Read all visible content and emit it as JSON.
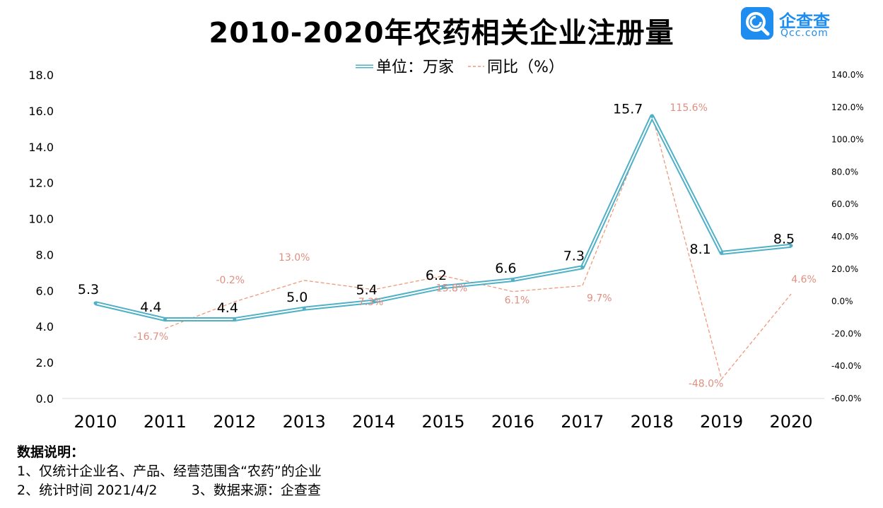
{
  "header": {
    "title": "2010-2020年农药相关企业注册量",
    "logo_name": "企查查",
    "logo_domain": "Qcc.com"
  },
  "colors": {
    "primary_line": "#4fb0c6",
    "secondary_line": "#f0997a",
    "secondary_label": "#e08f80",
    "brand": "#1f8df0"
  },
  "chart_data": {
    "type": "line",
    "title": "2010-2020年农药相关企业注册量",
    "categories": [
      "2010",
      "2011",
      "2012",
      "2013",
      "2014",
      "2015",
      "2016",
      "2017",
      "2018",
      "2019",
      "2020"
    ],
    "series": [
      {
        "name": "单位：万家",
        "axis": "left",
        "style": "double-line",
        "values": [
          5.3,
          4.4,
          4.4,
          5.0,
          5.4,
          6.2,
          6.6,
          7.3,
          15.7,
          8.1,
          8.5
        ],
        "labels": [
          "5.3",
          "4.4",
          "4.4",
          "5.0",
          "5.4",
          "6.2",
          "6.6",
          "7.3",
          "15.7",
          "8.1",
          "8.5"
        ]
      },
      {
        "name": "同比（%）",
        "axis": "right",
        "style": "dashed",
        "values": [
          null,
          -16.7,
          -0.2,
          13.0,
          7.3,
          15.8,
          6.1,
          9.7,
          115.6,
          -48.0,
          4.6
        ],
        "labels": [
          "",
          "-16.7%",
          "-0.2%",
          "13.0%",
          "7.3%",
          "15.8%",
          "6.1%",
          "9.7%",
          "115.6%",
          "-48.0%",
          "4.6%"
        ]
      }
    ],
    "y_left": {
      "min": 0,
      "max": 18,
      "ticks": [
        "0.0",
        "2.0",
        "4.0",
        "6.0",
        "8.0",
        "10.0",
        "12.0",
        "14.0",
        "16.0",
        "18.0"
      ]
    },
    "y_right": {
      "min": -60,
      "max": 140,
      "ticks": [
        "-60.0%",
        "-40.0%",
        "-20.0%",
        "0.0%",
        "20.0%",
        "40.0%",
        "60.0%",
        "80.0%",
        "100.0%",
        "120.0%",
        "140.0%"
      ]
    },
    "legend_position": "top-center",
    "grid": false
  },
  "notes": {
    "heading": "数据说明：",
    "line1": "1、仅统计企业名、产品、经营范围含“农药”的企业",
    "line2": "2、统计时间 2021/4/2        3、数据来源：企查查"
  }
}
